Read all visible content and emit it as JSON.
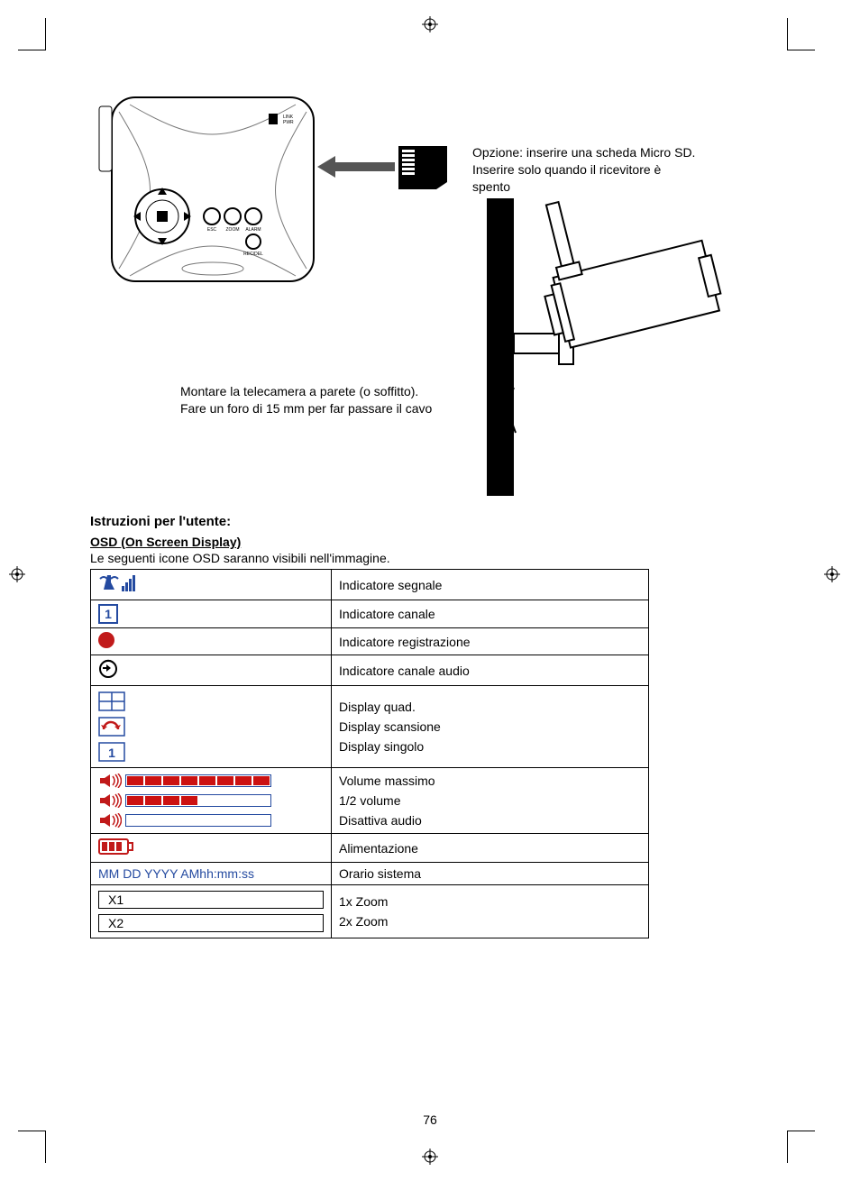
{
  "page_number": "76",
  "sd_text": "Opzione: inserire una scheda Micro SD. Inserire solo quando il ricevitore è spento",
  "mount_text": "Montare la telecamera a parete (o soffitto). Fare un foro di 15 mm per far passare il cavo",
  "heading": "Istruzioni per l'utente:",
  "subheading": "OSD (On Screen Display)",
  "subcaption": "Le seguenti icone OSD saranno visibili nell'immagine.",
  "osd": {
    "rows": [
      {
        "desc": "Indicatore segnale"
      },
      {
        "desc": "Indicatore canale",
        "icon_label": "1"
      },
      {
        "desc": "Indicatore registrazione"
      },
      {
        "desc": "Indicatore canale audio"
      }
    ],
    "display": {
      "quad": "Display quad.",
      "scan": "Display scansione",
      "single": "Display singolo",
      "single_num": "1"
    },
    "volume": {
      "max": "Volume massimo",
      "half": "1/2 volume",
      "mute": "Disattiva audio",
      "segments_total": 8,
      "segments_max": 8,
      "segments_half": 4,
      "segments_mute": 0
    },
    "power": "Alimentazione",
    "time_label": "MM DD YYYY AMhh:mm:ss",
    "time_desc": "Orario sistema",
    "zoom1_label": "X1",
    "zoom1_desc": "1x Zoom",
    "zoom2_label": "X2",
    "zoom2_desc": "2x Zoom"
  },
  "colors": {
    "red": "#c11a1a",
    "blue": "#244aa0",
    "black": "#000000",
    "white": "#ffffff"
  },
  "receiver_labels": {
    "esc": "ESC",
    "zoom": "ZOOM",
    "alarm": "ALARM",
    "rec_del": "REC/DEL",
    "link": "LINK",
    "pwr": "PWR"
  }
}
